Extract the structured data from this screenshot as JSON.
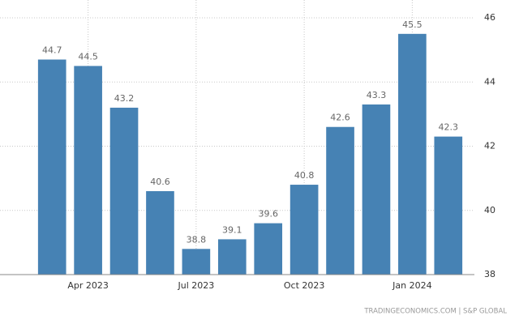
{
  "chart_data": {
    "type": "bar",
    "categories": [
      null,
      "Apr 2023",
      null,
      null,
      "Jul 2023",
      null,
      null,
      "Oct 2023",
      null,
      null,
      "Jan 2024",
      null
    ],
    "values": [
      44.7,
      44.5,
      43.2,
      40.6,
      38.8,
      39.1,
      39.6,
      40.8,
      42.6,
      43.3,
      45.5,
      42.3
    ],
    "color": "#4682b4",
    "ylim": [
      38,
      46
    ],
    "yticks": [
      38,
      40,
      42,
      44,
      46
    ],
    "grid": true,
    "source": "TRADINGECONOMICS.COM | S&P GLOBAL"
  }
}
